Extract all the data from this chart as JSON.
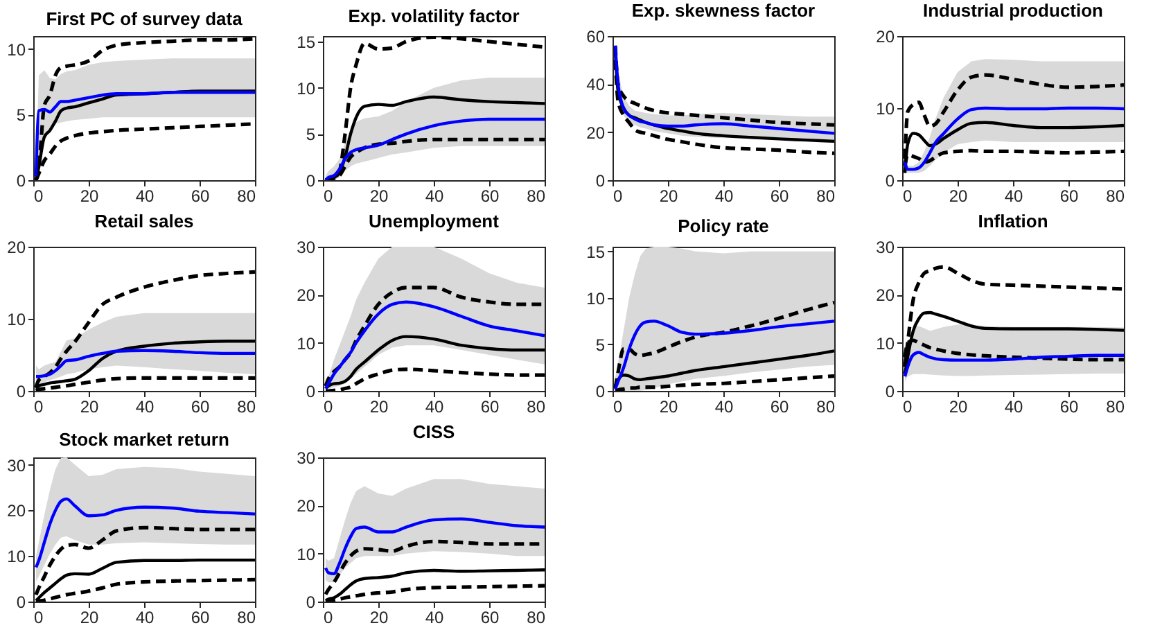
{
  "chart_data": [
    {
      "type": "line",
      "title": "First PC of survey data",
      "x": [
        1,
        2,
        4,
        6,
        8,
        10,
        12,
        15,
        20,
        25,
        30,
        40,
        50,
        60,
        70,
        80
      ],
      "xlim": [
        0,
        80
      ],
      "xticks": [
        0,
        20,
        40,
        60,
        80
      ],
      "ylim": [
        0,
        11
      ],
      "yticks": [
        0,
        5,
        10
      ],
      "series": [
        {
          "color": "#0000ff",
          "values": [
            0.3,
            5.3,
            5.4,
            5.2,
            5.6,
            6.0,
            6.0,
            6.1,
            6.3,
            6.5,
            6.6,
            6.6,
            6.7,
            6.7,
            6.7,
            6.7
          ],
          "lower": [
            0,
            0.5,
            3.5,
            4.0,
            4.3,
            4.4,
            4.5,
            4.6,
            4.7,
            4.8,
            4.8,
            4.8,
            4.8,
            4.8,
            4.8,
            4.8
          ],
          "upper": [
            1,
            8.0,
            8.4,
            7.8,
            7.7,
            8.1,
            8.3,
            8.4,
            8.8,
            9.0,
            9.1,
            9.2,
            9.3,
            9.3,
            9.3,
            9.3
          ]
        },
        {
          "color": "#000000",
          "values": [
            0,
            1.0,
            3.3,
            3.8,
            4.5,
            5.3,
            5.5,
            5.6,
            5.9,
            6.2,
            6.5,
            6.6,
            6.7,
            6.8,
            6.8,
            6.8
          ]
        },
        {
          "color": "#000000",
          "line_style": "dashed",
          "values": [
            0,
            1.0,
            5.7,
            6.5,
            8.0,
            8.6,
            8.7,
            8.8,
            9.1,
            9.9,
            10.3,
            10.5,
            10.6,
            10.7,
            10.7,
            10.8
          ]
        },
        {
          "color": "#000000",
          "line_style": "dashed",
          "values": [
            0,
            0.5,
            1.5,
            2.0,
            2.6,
            3.0,
            3.2,
            3.4,
            3.6,
            3.7,
            3.8,
            3.9,
            4.0,
            4.1,
            4.2,
            4.3
          ]
        }
      ]
    },
    {
      "type": "line",
      "title": "Exp. volatility factor",
      "x": [
        1,
        2,
        4,
        6,
        8,
        10,
        12,
        15,
        20,
        25,
        30,
        40,
        50,
        60,
        70,
        80
      ],
      "xlim": [
        0,
        80
      ],
      "xticks": [
        0,
        20,
        40,
        60,
        80
      ],
      "ylim": [
        0,
        15.6
      ],
      "yticks": [
        0,
        5,
        10,
        15
      ],
      "series": [
        {
          "color": "#0000ff",
          "values": [
            0,
            0.3,
            0.5,
            1.2,
            2.3,
            3.0,
            3.3,
            3.5,
            3.8,
            4.4,
            5.0,
            5.9,
            6.4,
            6.6,
            6.6,
            6.6
          ],
          "lower": [
            0,
            0,
            0,
            0.3,
            1.0,
            1.5,
            1.8,
            2.0,
            2.4,
            2.8,
            3.0,
            3.5,
            3.7,
            3.7,
            3.7,
            3.7
          ],
          "upper": [
            0.5,
            1.0,
            1.5,
            2.3,
            4.0,
            5.5,
            6.3,
            6.7,
            6.9,
            7.5,
            8.5,
            10.0,
            10.8,
            11.1,
            11.1,
            11.1
          ]
        },
        {
          "color": "#000000",
          "values": [
            0,
            0.2,
            0.3,
            0.8,
            2.5,
            5.0,
            6.8,
            8.0,
            8.2,
            8.1,
            8.5,
            9.0,
            8.7,
            8.5,
            8.4,
            8.3
          ]
        },
        {
          "color": "#000000",
          "line_style": "dashed",
          "values": [
            0,
            0.1,
            0.3,
            1.0,
            5.0,
            10.0,
            12.5,
            14.8,
            14.2,
            14.3,
            15.0,
            15.5,
            15.3,
            15.0,
            14.7,
            14.4
          ]
        },
        {
          "color": "#000000",
          "line_style": "dashed",
          "values": [
            0,
            0.1,
            0.2,
            0.5,
            1.5,
            2.5,
            3.0,
            3.5,
            3.9,
            4.0,
            4.2,
            4.4,
            4.4,
            4.4,
            4.4,
            4.4
          ]
        }
      ]
    },
    {
      "type": "line",
      "title": "Exp. skewness factor",
      "x": [
        1,
        2,
        4,
        6,
        8,
        10,
        12,
        15,
        20,
        25,
        30,
        40,
        50,
        60,
        70,
        80
      ],
      "xlim": [
        0,
        80
      ],
      "xticks": [
        0,
        20,
        40,
        60,
        80
      ],
      "ylim": [
        0,
        60
      ],
      "yticks": [
        0,
        20,
        40,
        60
      ],
      "series": [
        {
          "color": "#0000ff",
          "values": [
            56,
            40,
            30,
            27,
            25.5,
            24.5,
            24,
            23,
            22.5,
            22.5,
            23,
            23.5,
            22.5,
            21.5,
            20.5,
            19.5
          ],
          "lower": [
            52,
            36,
            27,
            24,
            23,
            22,
            21.5,
            20.5,
            19.5,
            18.5,
            18,
            17.5,
            17.5,
            17,
            16.5,
            15.5
          ],
          "upper": [
            57,
            45,
            35,
            31,
            29,
            28.5,
            28,
            27.5,
            27,
            27,
            27.5,
            28,
            27.5,
            27,
            26.5,
            26.5
          ]
        },
        {
          "color": "#000000",
          "values": [
            53,
            37,
            30,
            27,
            26,
            25,
            24,
            23,
            21.5,
            20.5,
            19.5,
            18.5,
            17.8,
            17.2,
            16.7,
            16.2
          ]
        },
        {
          "color": "#000000",
          "line_style": "dashed",
          "values": [
            56,
            40,
            35,
            33,
            32,
            31,
            30,
            29,
            28,
            27.5,
            27,
            26,
            25,
            24,
            23.5,
            23
          ]
        },
        {
          "color": "#000000",
          "line_style": "dashed",
          "values": [
            50,
            33,
            27,
            24,
            21,
            20,
            19.5,
            18.5,
            17,
            16,
            15,
            13.5,
            13,
            12.5,
            11.7,
            11.2
          ]
        }
      ]
    },
    {
      "type": "line",
      "title": "Industrial production",
      "x": [
        1,
        2,
        4,
        6,
        8,
        10,
        12,
        15,
        20,
        25,
        30,
        40,
        50,
        60,
        70,
        80
      ],
      "xlim": [
        0,
        80
      ],
      "xticks": [
        0,
        20,
        40,
        60,
        80
      ],
      "ylim": [
        0,
        20
      ],
      "yticks": [
        0,
        10,
        20
      ],
      "series": [
        {
          "color": "#0000ff",
          "values": [
            2.5,
            1.5,
            1.5,
            1.7,
            2.5,
            3.8,
            5.2,
            6.5,
            8.5,
            9.8,
            10.0,
            9.9,
            9.9,
            10.0,
            10.0,
            9.9
          ],
          "lower": [
            1.0,
            1.0,
            1.0,
            1.0,
            1.3,
            2.0,
            2.8,
            3.8,
            5.0,
            5.3,
            5.5,
            5.3,
            5.3,
            5.3,
            5.3,
            5.3
          ],
          "upper": [
            3.0,
            2.0,
            2.0,
            2.5,
            4.0,
            6.0,
            8.5,
            11.5,
            15.0,
            16.5,
            16.8,
            16.7,
            16.5,
            16.5,
            16.5,
            16.5
          ]
        },
        {
          "color": "#000000",
          "values": [
            1.0,
            5.0,
            6.5,
            6.3,
            5.5,
            4.8,
            5.0,
            5.8,
            7.0,
            7.9,
            8.0,
            7.6,
            7.3,
            7.3,
            7.4,
            7.6
          ]
        },
        {
          "color": "#000000",
          "line_style": "dashed",
          "values": [
            3.0,
            9.5,
            10.5,
            10.8,
            9.0,
            7.5,
            7.8,
            9.5,
            12.5,
            14.3,
            14.6,
            14.0,
            13.3,
            12.9,
            13.0,
            13.2
          ]
        },
        {
          "color": "#000000",
          "line_style": "dashed",
          "values": [
            2.0,
            3.5,
            3.3,
            3.0,
            2.5,
            2.7,
            3.2,
            3.8,
            4.0,
            4.1,
            4.0,
            4.0,
            3.9,
            3.8,
            3.9,
            4.0
          ]
        }
      ]
    },
    {
      "type": "line",
      "title": "Retail sales",
      "x": [
        1,
        2,
        4,
        6,
        8,
        10,
        12,
        15,
        20,
        25,
        30,
        40,
        50,
        60,
        70,
        80
      ],
      "xlim": [
        0,
        80
      ],
      "xticks": [
        0,
        20,
        40,
        60,
        80
      ],
      "ylim": [
        0,
        20
      ],
      "yticks": [
        0,
        10,
        20
      ],
      "series": [
        {
          "color": "#0000ff",
          "values": [
            2.0,
            2.0,
            2.1,
            2.3,
            2.8,
            3.5,
            4.2,
            4.3,
            4.8,
            5.2,
            5.5,
            5.6,
            5.5,
            5.3,
            5.2,
            5.2
          ],
          "lower": [
            0.5,
            1.0,
            1.2,
            1.5,
            1.7,
            2.0,
            2.3,
            2.5,
            3.0,
            3.3,
            3.5,
            3.3,
            3.0,
            2.8,
            2.5,
            2.3
          ],
          "upper": [
            3.5,
            3.0,
            3.5,
            3.8,
            4.0,
            5.5,
            7.0,
            7.3,
            8.5,
            9.5,
            10.3,
            10.8,
            10.8,
            10.8,
            10.8,
            10.8
          ]
        },
        {
          "color": "#000000",
          "values": [
            0.3,
            0.7,
            0.9,
            1.1,
            1.2,
            1.3,
            1.4,
            1.6,
            2.8,
            4.5,
            5.5,
            6.2,
            6.6,
            6.8,
            6.9,
            6.9
          ]
        },
        {
          "color": "#000000",
          "line_style": "dashed",
          "values": [
            0.5,
            1.5,
            2.0,
            2.5,
            3.3,
            4.5,
            5.5,
            6.8,
            9.5,
            12.0,
            13.0,
            14.4,
            15.3,
            16.0,
            16.3,
            16.5
          ]
        },
        {
          "color": "#000000",
          "line_style": "dashed",
          "values": [
            0,
            0.2,
            0.3,
            0.4,
            0.5,
            0.6,
            0.7,
            0.9,
            1.2,
            1.5,
            1.7,
            1.8,
            1.8,
            1.8,
            1.8,
            1.8
          ]
        }
      ]
    },
    {
      "type": "line",
      "title": "Unemployment",
      "x": [
        1,
        2,
        4,
        6,
        8,
        10,
        12,
        15,
        20,
        25,
        30,
        40,
        50,
        60,
        70,
        80
      ],
      "xlim": [
        0,
        80
      ],
      "xticks": [
        0,
        20,
        40,
        60,
        80
      ],
      "ylim": [
        0,
        30
      ],
      "yticks": [
        0,
        10,
        20,
        30
      ],
      "series": [
        {
          "color": "#0000ff",
          "values": [
            0.5,
            1.5,
            3.5,
            5.0,
            6.5,
            8.0,
            10.0,
            12.5,
            16.0,
            18.0,
            18.5,
            17.5,
            15.5,
            13.5,
            12.5,
            11.5
          ],
          "lower": [
            0,
            0.3,
            0.8,
            1.0,
            1.5,
            2.5,
            3.5,
            5.0,
            7.5,
            9.0,
            9.5,
            9.5,
            8.5,
            7.5,
            6.5,
            5.5
          ],
          "upper": [
            1.5,
            3.0,
            6.5,
            9.5,
            12.5,
            15.5,
            19.0,
            22.5,
            27.5,
            30,
            30,
            30,
            27.5,
            24.5,
            22.5,
            21.5
          ]
        },
        {
          "color": "#000000",
          "values": [
            0.5,
            1.0,
            1.5,
            1.6,
            2.0,
            3.0,
            4.5,
            6.0,
            8.5,
            10.5,
            11.3,
            10.8,
            9.5,
            8.8,
            8.5,
            8.5
          ]
        },
        {
          "color": "#000000",
          "line_style": "dashed",
          "values": [
            1.0,
            2.5,
            4.0,
            5.0,
            6.5,
            8.0,
            10.5,
            13.5,
            18.0,
            20.5,
            21.5,
            21.5,
            19.5,
            18.5,
            18.0,
            18.0
          ]
        },
        {
          "color": "#000000",
          "line_style": "dashed",
          "values": [
            0,
            0,
            0.1,
            0.2,
            0.5,
            0.8,
            1.5,
            2.5,
            3.5,
            4.3,
            4.5,
            4.2,
            3.8,
            3.5,
            3.3,
            3.3
          ]
        }
      ]
    },
    {
      "type": "line",
      "title": "Policy rate",
      "x": [
        1,
        2,
        4,
        6,
        8,
        10,
        12,
        15,
        20,
        25,
        30,
        40,
        50,
        60,
        70,
        80
      ],
      "xlim": [
        0,
        80
      ],
      "xticks": [
        0,
        20,
        40,
        60,
        80
      ],
      "ylim": [
        0,
        15.5
      ],
      "yticks": [
        0,
        5,
        10,
        15
      ],
      "series": [
        {
          "color": "#0000ff",
          "values": [
            0.2,
            1.0,
            2.5,
            4.5,
            6.0,
            7.0,
            7.4,
            7.5,
            7.0,
            6.3,
            6.1,
            6.2,
            6.5,
            6.9,
            7.2,
            7.5
          ],
          "lower": [
            0,
            0,
            0,
            0,
            0,
            0,
            0.1,
            0.3,
            0.7,
            1.0,
            1.3,
            1.6,
            2.0,
            2.3,
            2.6,
            2.8
          ],
          "upper": [
            1.5,
            3.0,
            6.5,
            10.0,
            12.5,
            14.5,
            15.3,
            15.5,
            15.5,
            15.3,
            15.0,
            14.8,
            15.0,
            15.0,
            15.0,
            15.0
          ]
        },
        {
          "color": "#000000",
          "values": [
            0.5,
            1.2,
            1.7,
            1.6,
            1.3,
            1.2,
            1.3,
            1.4,
            1.6,
            1.9,
            2.2,
            2.6,
            3.0,
            3.4,
            3.8,
            4.3
          ]
        },
        {
          "color": "#000000",
          "line_style": "dashed",
          "values": [
            0.3,
            2.0,
            4.5,
            4.5,
            4.0,
            3.8,
            3.9,
            4.1,
            4.7,
            5.3,
            5.8,
            6.3,
            7.0,
            7.8,
            8.7,
            9.5
          ]
        },
        {
          "color": "#000000",
          "line_style": "dashed",
          "values": [
            0,
            0.1,
            0.2,
            0.3,
            0.3,
            0.4,
            0.4,
            0.4,
            0.5,
            0.6,
            0.7,
            0.8,
            1.0,
            1.2,
            1.4,
            1.6
          ]
        }
      ]
    },
    {
      "type": "line",
      "title": "Inflation",
      "x": [
        1,
        2,
        4,
        6,
        8,
        10,
        12,
        15,
        20,
        25,
        30,
        40,
        50,
        60,
        70,
        80
      ],
      "xlim": [
        0,
        80
      ],
      "xticks": [
        0,
        20,
        40,
        60,
        80
      ],
      "ylim": [
        0,
        30
      ],
      "yticks": [
        0,
        10,
        20,
        30
      ],
      "series": [
        {
          "color": "#0000ff",
          "values": [
            3.0,
            5.0,
            7.5,
            8.0,
            7.5,
            7.0,
            6.7,
            6.5,
            6.4,
            6.4,
            6.4,
            6.6,
            7.0,
            7.2,
            7.4,
            7.4
          ],
          "lower": [
            2.0,
            3.0,
            3.5,
            3.5,
            3.5,
            3.4,
            3.3,
            3.2,
            3.1,
            3.1,
            3.2,
            3.3,
            3.4,
            3.5,
            3.6,
            3.6
          ],
          "upper": [
            4.0,
            9.0,
            13.5,
            13.5,
            13.0,
            12.5,
            12.8,
            13.3,
            13.8,
            13.8,
            13.5,
            13.3,
            13.3,
            13.3,
            13.3,
            13.2
          ]
        },
        {
          "color": "#000000",
          "values": [
            3.5,
            7.0,
            12.5,
            15.0,
            16.2,
            16.3,
            16.0,
            15.5,
            14.5,
            13.5,
            13.0,
            12.9,
            12.9,
            12.9,
            12.8,
            12.6
          ]
        },
        {
          "color": "#000000",
          "line_style": "dashed",
          "values": [
            5.0,
            10.0,
            19.0,
            22.5,
            24.5,
            25.0,
            25.5,
            25.8,
            24.5,
            23.0,
            22.2,
            22.0,
            21.8,
            21.6,
            21.4,
            21.2
          ]
        },
        {
          "color": "#000000",
          "line_style": "dashed",
          "values": [
            7.0,
            10.0,
            10.5,
            10.0,
            9.5,
            9.0,
            8.7,
            8.3,
            7.8,
            7.5,
            7.3,
            7.0,
            6.8,
            6.6,
            6.5,
            6.5
          ]
        }
      ]
    },
    {
      "type": "line",
      "title": "Stock market return",
      "x": [
        1,
        2,
        4,
        6,
        8,
        10,
        12,
        15,
        20,
        25,
        30,
        40,
        50,
        60,
        70,
        80
      ],
      "xlim": [
        0,
        80
      ],
      "xticks": [
        0,
        20,
        40,
        60,
        80
      ],
      "ylim": [
        0,
        31.6
      ],
      "yticks": [
        0,
        10,
        20,
        30
      ],
      "series": [
        {
          "color": "#0000ff",
          "values": [
            7.5,
            9.0,
            13.0,
            17.0,
            20.0,
            22.0,
            22.5,
            21.0,
            18.8,
            19.0,
            20.0,
            20.7,
            20.5,
            19.8,
            19.5,
            19.2
          ],
          "lower": [
            4.5,
            5.5,
            8.0,
            10.5,
            12.5,
            14.0,
            14.3,
            13.5,
            12.5,
            12.5,
            12.8,
            13.0,
            12.8,
            12.6,
            12.5,
            12.5
          ],
          "upper": [
            10.0,
            13.0,
            19.0,
            24.5,
            29.0,
            31.5,
            31.6,
            30.0,
            27.5,
            27.8,
            29.0,
            29.5,
            29.3,
            28.5,
            28.0,
            27.5
          ]
        },
        {
          "color": "#000000",
          "values": [
            0.2,
            0.8,
            2.0,
            3.0,
            4.0,
            5.0,
            5.8,
            6.1,
            6.0,
            7.3,
            8.6,
            9.0,
            9.0,
            9.1,
            9.1,
            9.1
          ]
        },
        {
          "color": "#000000",
          "line_style": "dashed",
          "values": [
            1.5,
            3.0,
            5.5,
            8.0,
            10.0,
            11.5,
            12.3,
            12.5,
            11.7,
            13.5,
            15.5,
            16.2,
            16.0,
            15.8,
            15.8,
            15.8
          ]
        },
        {
          "color": "#000000",
          "line_style": "dashed",
          "values": [
            0,
            0.1,
            0.3,
            0.6,
            0.9,
            1.2,
            1.5,
            1.8,
            2.3,
            3.0,
            3.8,
            4.3,
            4.5,
            4.6,
            4.7,
            4.8
          ]
        }
      ]
    },
    {
      "type": "line",
      "title": "CISS",
      "x": [
        1,
        2,
        4,
        6,
        8,
        10,
        12,
        15,
        20,
        25,
        30,
        40,
        50,
        60,
        70,
        80
      ],
      "xlim": [
        0,
        80
      ],
      "xticks": [
        0,
        20,
        40,
        60,
        80
      ],
      "ylim": [
        0,
        30
      ],
      "yticks": [
        0,
        10,
        20,
        30
      ],
      "series": [
        {
          "color": "#0000ff",
          "values": [
            7.0,
            6.0,
            5.8,
            8.0,
            11.0,
            13.5,
            15.2,
            15.5,
            14.5,
            14.5,
            15.5,
            17.0,
            17.2,
            16.5,
            15.8,
            15.5
          ],
          "lower": [
            4.5,
            4.0,
            4.0,
            5.5,
            7.0,
            8.0,
            9.0,
            9.5,
            9.5,
            9.5,
            10.0,
            10.5,
            10.3,
            10.0,
            9.5,
            9.5
          ],
          "upper": [
            9.0,
            8.5,
            9.0,
            13.0,
            17.0,
            20.5,
            23.0,
            24.0,
            22.5,
            22.0,
            23.5,
            25.5,
            25.5,
            24.5,
            24.0,
            23.5
          ]
        },
        {
          "color": "#000000",
          "values": [
            0.2,
            0.5,
            0.8,
            1.5,
            2.5,
            3.5,
            4.3,
            4.8,
            5.0,
            5.3,
            6.0,
            6.5,
            6.3,
            6.4,
            6.5,
            6.6
          ]
        },
        {
          "color": "#000000",
          "line_style": "dashed",
          "values": [
            1.5,
            2.5,
            4.0,
            6.0,
            8.0,
            9.5,
            10.5,
            11.0,
            10.8,
            10.5,
            11.5,
            12.5,
            12.3,
            12.0,
            12.0,
            12.0
          ]
        },
        {
          "color": "#000000",
          "line_style": "dashed",
          "values": [
            0,
            0.1,
            0.3,
            0.5,
            0.8,
            1.0,
            1.2,
            1.5,
            1.8,
            2.0,
            2.5,
            2.9,
            3.0,
            3.1,
            3.2,
            3.3
          ]
        }
      ]
    }
  ]
}
